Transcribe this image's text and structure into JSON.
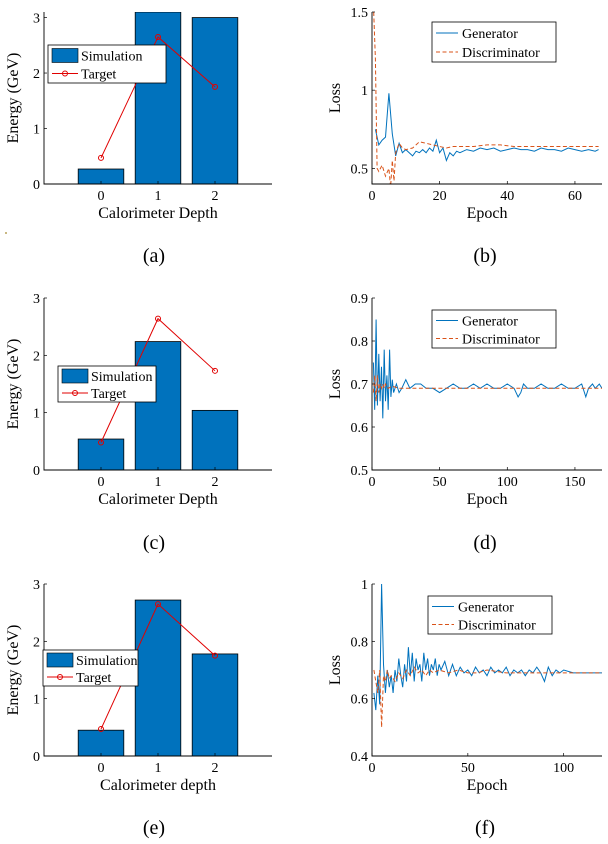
{
  "colors": {
    "bar_fill": "#0072BD",
    "target_line": "#E00000",
    "generator_line": "#0072BD",
    "discriminator_line": "#D95319",
    "axis": "#000000"
  },
  "chart_data": [
    {
      "type": "bar",
      "panel_label": "(a)",
      "xlabel": "Calorimeter Depth",
      "ylabel": "Energy (GeV)",
      "categories": [
        "0",
        "1",
        "2"
      ],
      "xlim": [
        -1,
        3
      ],
      "ylim": [
        0,
        3.1
      ],
      "yticks": [
        0,
        1,
        2,
        3
      ],
      "grid": false,
      "legend_position": "top-left",
      "series": [
        {
          "name": "Simulation",
          "kind": "bar",
          "values": [
            0.27,
            3.15,
            3.0
          ]
        },
        {
          "name": "Target",
          "kind": "line-marker",
          "values": [
            0.47,
            2.65,
            1.75
          ]
        }
      ]
    },
    {
      "type": "line",
      "panel_label": "(b)",
      "xlabel": "Epoch",
      "ylabel": "Loss",
      "xlim": [
        0,
        68
      ],
      "ylim": [
        0.4,
        1.5
      ],
      "xticks": [
        0,
        20,
        40,
        60
      ],
      "yticks": [
        0.5,
        1,
        1.5
      ],
      "grid": false,
      "legend_position": "top-right",
      "series": [
        {
          "name": "Generator",
          "style": "solid",
          "x": [
            1,
            2,
            3,
            4,
            5,
            6,
            7,
            8,
            9,
            10,
            11,
            12,
            13,
            14,
            15,
            16,
            17,
            18,
            19,
            20,
            21,
            22,
            23,
            24,
            25,
            26,
            28,
            30,
            32,
            34,
            36,
            38,
            40,
            42,
            44,
            46,
            48,
            50,
            52,
            54,
            56,
            58,
            60,
            62,
            64,
            66,
            67
          ],
          "y": [
            0.75,
            0.65,
            0.68,
            0.7,
            0.98,
            0.72,
            0.58,
            0.66,
            0.6,
            0.62,
            0.6,
            0.58,
            0.61,
            0.6,
            0.62,
            0.6,
            0.63,
            0.61,
            0.68,
            0.6,
            0.63,
            0.55,
            0.6,
            0.58,
            0.61,
            0.6,
            0.62,
            0.61,
            0.63,
            0.62,
            0.63,
            0.61,
            0.62,
            0.63,
            0.62,
            0.62,
            0.61,
            0.63,
            0.62,
            0.62,
            0.61,
            0.63,
            0.62,
            0.61,
            0.62,
            0.61,
            0.62
          ]
        },
        {
          "name": "Discriminator",
          "style": "dashed",
          "x": [
            0.5,
            1,
            1.5,
            2,
            3,
            4,
            5,
            5.5,
            6,
            6.5,
            7,
            8,
            9,
            10,
            12,
            14,
            16,
            18,
            20,
            22,
            24,
            26,
            30,
            34,
            38,
            42,
            46,
            50,
            54,
            58,
            62,
            66,
            67
          ],
          "y": [
            1.5,
            1.2,
            0.5,
            0.48,
            0.52,
            0.45,
            0.5,
            0.38,
            0.55,
            0.42,
            0.6,
            0.66,
            0.63,
            0.62,
            0.63,
            0.67,
            0.66,
            0.65,
            0.64,
            0.63,
            0.64,
            0.64,
            0.64,
            0.65,
            0.65,
            0.64,
            0.64,
            0.64,
            0.64,
            0.64,
            0.64,
            0.64,
            0.64
          ]
        }
      ]
    },
    {
      "type": "bar",
      "panel_label": "(c)",
      "xlabel": "Calorimeter Depth",
      "ylabel": "Energy (GeV)",
      "categories": [
        "0",
        "1",
        "2"
      ],
      "xlim": [
        -1,
        3
      ],
      "ylim": [
        0,
        3
      ],
      "yticks": [
        0,
        1,
        2,
        3
      ],
      "grid": false,
      "legend_position": "middle-left",
      "series": [
        {
          "name": "Simulation",
          "kind": "bar",
          "values": [
            0.54,
            2.24,
            1.04
          ]
        },
        {
          "name": "Target",
          "kind": "line-marker",
          "values": [
            0.48,
            2.64,
            1.73
          ]
        }
      ]
    },
    {
      "type": "line",
      "panel_label": "(d)",
      "xlabel": "Epoch",
      "ylabel": "Loss",
      "xlim": [
        0,
        170
      ],
      "ylim": [
        0.5,
        0.9
      ],
      "xticks": [
        0,
        50,
        100,
        150
      ],
      "yticks": [
        0.5,
        0.6,
        0.7,
        0.8,
        0.9
      ],
      "grid": false,
      "legend_position": "top-right",
      "series": [
        {
          "name": "Generator",
          "style": "solid",
          "x": [
            1,
            2,
            3,
            4,
            5,
            6,
            7,
            8,
            9,
            10,
            11,
            12,
            13,
            14,
            15,
            16,
            18,
            20,
            22,
            25,
            28,
            32,
            36,
            40,
            45,
            50,
            55,
            60,
            65,
            70,
            75,
            80,
            85,
            90,
            95,
            100,
            105,
            108,
            110,
            112,
            115,
            120,
            125,
            130,
            135,
            140,
            145,
            150,
            155,
            158,
            160,
            163,
            165,
            168,
            170
          ],
          "y": [
            0.75,
            0.64,
            0.85,
            0.65,
            0.77,
            0.66,
            0.74,
            0.62,
            0.78,
            0.66,
            0.72,
            0.64,
            0.78,
            0.67,
            0.71,
            0.68,
            0.7,
            0.68,
            0.69,
            0.71,
            0.69,
            0.7,
            0.7,
            0.69,
            0.69,
            0.68,
            0.69,
            0.7,
            0.69,
            0.69,
            0.7,
            0.69,
            0.7,
            0.69,
            0.69,
            0.7,
            0.69,
            0.67,
            0.68,
            0.7,
            0.69,
            0.69,
            0.7,
            0.69,
            0.69,
            0.7,
            0.69,
            0.69,
            0.7,
            0.67,
            0.69,
            0.7,
            0.69,
            0.7,
            0.69
          ]
        },
        {
          "name": "Discriminator",
          "style": "dashed",
          "x": [
            1,
            2,
            3,
            4,
            5,
            6,
            7,
            8,
            9,
            10,
            12,
            15,
            20,
            30,
            40,
            50,
            60,
            70,
            80,
            90,
            100,
            110,
            120,
            130,
            140,
            150,
            160,
            170
          ],
          "y": [
            0.68,
            0.72,
            0.66,
            0.72,
            0.68,
            0.7,
            0.69,
            0.7,
            0.69,
            0.7,
            0.69,
            0.695,
            0.69,
            0.69,
            0.69,
            0.69,
            0.69,
            0.69,
            0.69,
            0.69,
            0.69,
            0.69,
            0.69,
            0.69,
            0.69,
            0.69,
            0.69,
            0.69
          ]
        }
      ]
    },
    {
      "type": "bar",
      "panel_label": "(e)",
      "xlabel": "Calorimeter depth",
      "ylabel": "Energy (GeV)",
      "categories": [
        "0",
        "1",
        "2"
      ],
      "xlim": [
        -1,
        3
      ],
      "ylim": [
        0,
        3
      ],
      "yticks": [
        0,
        1,
        2,
        3
      ],
      "grid": false,
      "legend_position": "middle-left",
      "series": [
        {
          "name": "Simulation",
          "kind": "bar",
          "values": [
            0.45,
            2.72,
            1.78
          ]
        },
        {
          "name": "Target",
          "kind": "line-marker",
          "values": [
            0.47,
            2.65,
            1.75
          ]
        }
      ]
    },
    {
      "type": "line",
      "panel_label": "(f)",
      "xlabel": "Epoch",
      "ylabel": "Loss",
      "xlim": [
        0,
        120
      ],
      "ylim": [
        0.4,
        1.0
      ],
      "xticks": [
        0,
        50,
        100
      ],
      "yticks": [
        0.4,
        0.6,
        0.8,
        1
      ],
      "grid": false,
      "legend_position": "top-right",
      "series": [
        {
          "name": "Generator",
          "style": "solid",
          "x": [
            1,
            2,
            3,
            4,
            5,
            6,
            7,
            8,
            9,
            10,
            11,
            12,
            13,
            14,
            15,
            16,
            17,
            18,
            19,
            20,
            21,
            22,
            23,
            24,
            25,
            26,
            27,
            28,
            29,
            30,
            31,
            32,
            33,
            34,
            35,
            36,
            38,
            40,
            42,
            44,
            46,
            48,
            50,
            52,
            54,
            56,
            58,
            60,
            62,
            64,
            66,
            68,
            70,
            72,
            74,
            76,
            78,
            80,
            82,
            84,
            86,
            88,
            90,
            92,
            94,
            96,
            98,
            100,
            105,
            110,
            115,
            120
          ],
          "y": [
            0.62,
            0.56,
            0.68,
            0.58,
            1.0,
            0.72,
            0.62,
            0.7,
            0.64,
            0.68,
            0.62,
            0.7,
            0.66,
            0.74,
            0.68,
            0.64,
            0.72,
            0.66,
            0.78,
            0.68,
            0.76,
            0.66,
            0.74,
            0.7,
            0.72,
            0.66,
            0.76,
            0.7,
            0.74,
            0.68,
            0.72,
            0.7,
            0.74,
            0.68,
            0.72,
            0.7,
            0.73,
            0.68,
            0.72,
            0.68,
            0.71,
            0.69,
            0.7,
            0.68,
            0.71,
            0.69,
            0.7,
            0.68,
            0.71,
            0.69,
            0.7,
            0.69,
            0.71,
            0.68,
            0.7,
            0.69,
            0.7,
            0.68,
            0.7,
            0.69,
            0.71,
            0.69,
            0.66,
            0.71,
            0.68,
            0.7,
            0.69,
            0.7,
            0.69,
            0.69,
            0.69,
            0.69
          ]
        },
        {
          "name": "Discriminator",
          "style": "dashed",
          "x": [
            1,
            2,
            3,
            4,
            5,
            6,
            7,
            8,
            9,
            10,
            12,
            14,
            16,
            18,
            20,
            22,
            24,
            26,
            28,
            30,
            32,
            35,
            40,
            45,
            50,
            55,
            60,
            70,
            80,
            90,
            100,
            110,
            120
          ],
          "y": [
            0.7,
            0.66,
            0.62,
            0.7,
            0.5,
            0.68,
            0.66,
            0.7,
            0.67,
            0.68,
            0.66,
            0.69,
            0.67,
            0.7,
            0.68,
            0.71,
            0.69,
            0.7,
            0.68,
            0.7,
            0.69,
            0.7,
            0.69,
            0.7,
            0.69,
            0.69,
            0.7,
            0.69,
            0.69,
            0.69,
            0.69,
            0.69,
            0.69
          ]
        }
      ]
    }
  ]
}
